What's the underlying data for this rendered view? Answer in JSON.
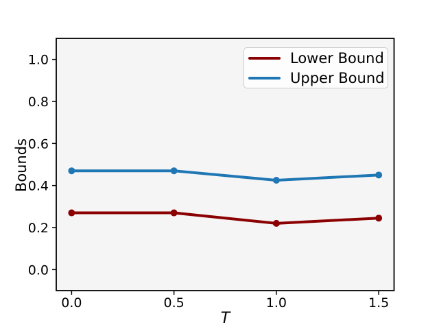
{
  "figure": {
    "background": "#ffffff",
    "plot_background": "#f5f5f5",
    "spine_color": "#000000",
    "tick_color": "#000000",
    "text_color": "#000000"
  },
  "chart_data": {
    "type": "line",
    "x": [
      0.0,
      0.5,
      1.0,
      1.5
    ],
    "series": [
      {
        "name": "Lower Bound",
        "color": "#8b0000",
        "values": [
          0.27,
          0.27,
          0.22,
          0.245
        ]
      },
      {
        "name": "Upper Bound",
        "color": "#1f77b4",
        "values": [
          0.47,
          0.47,
          0.425,
          0.45
        ]
      }
    ],
    "title": "",
    "xlabel": "T",
    "ylabel": "Bounds",
    "xticks": [
      0.0,
      0.5,
      1.0,
      1.5
    ],
    "yticks": [
      0.0,
      0.2,
      0.4,
      0.6,
      0.8,
      1.0
    ],
    "xtick_labels": [
      "0.0",
      "0.5",
      "1.0",
      "1.5"
    ],
    "ytick_labels": [
      "0.0",
      "0.2",
      "0.4",
      "0.6",
      "0.8",
      "1.0"
    ],
    "xlim": [
      -0.075,
      1.575
    ],
    "ylim": [
      -0.1,
      1.1
    ],
    "grid": false,
    "legend_position": "upper right",
    "marker": "circle",
    "line_width": 4,
    "marker_radius": 5
  }
}
